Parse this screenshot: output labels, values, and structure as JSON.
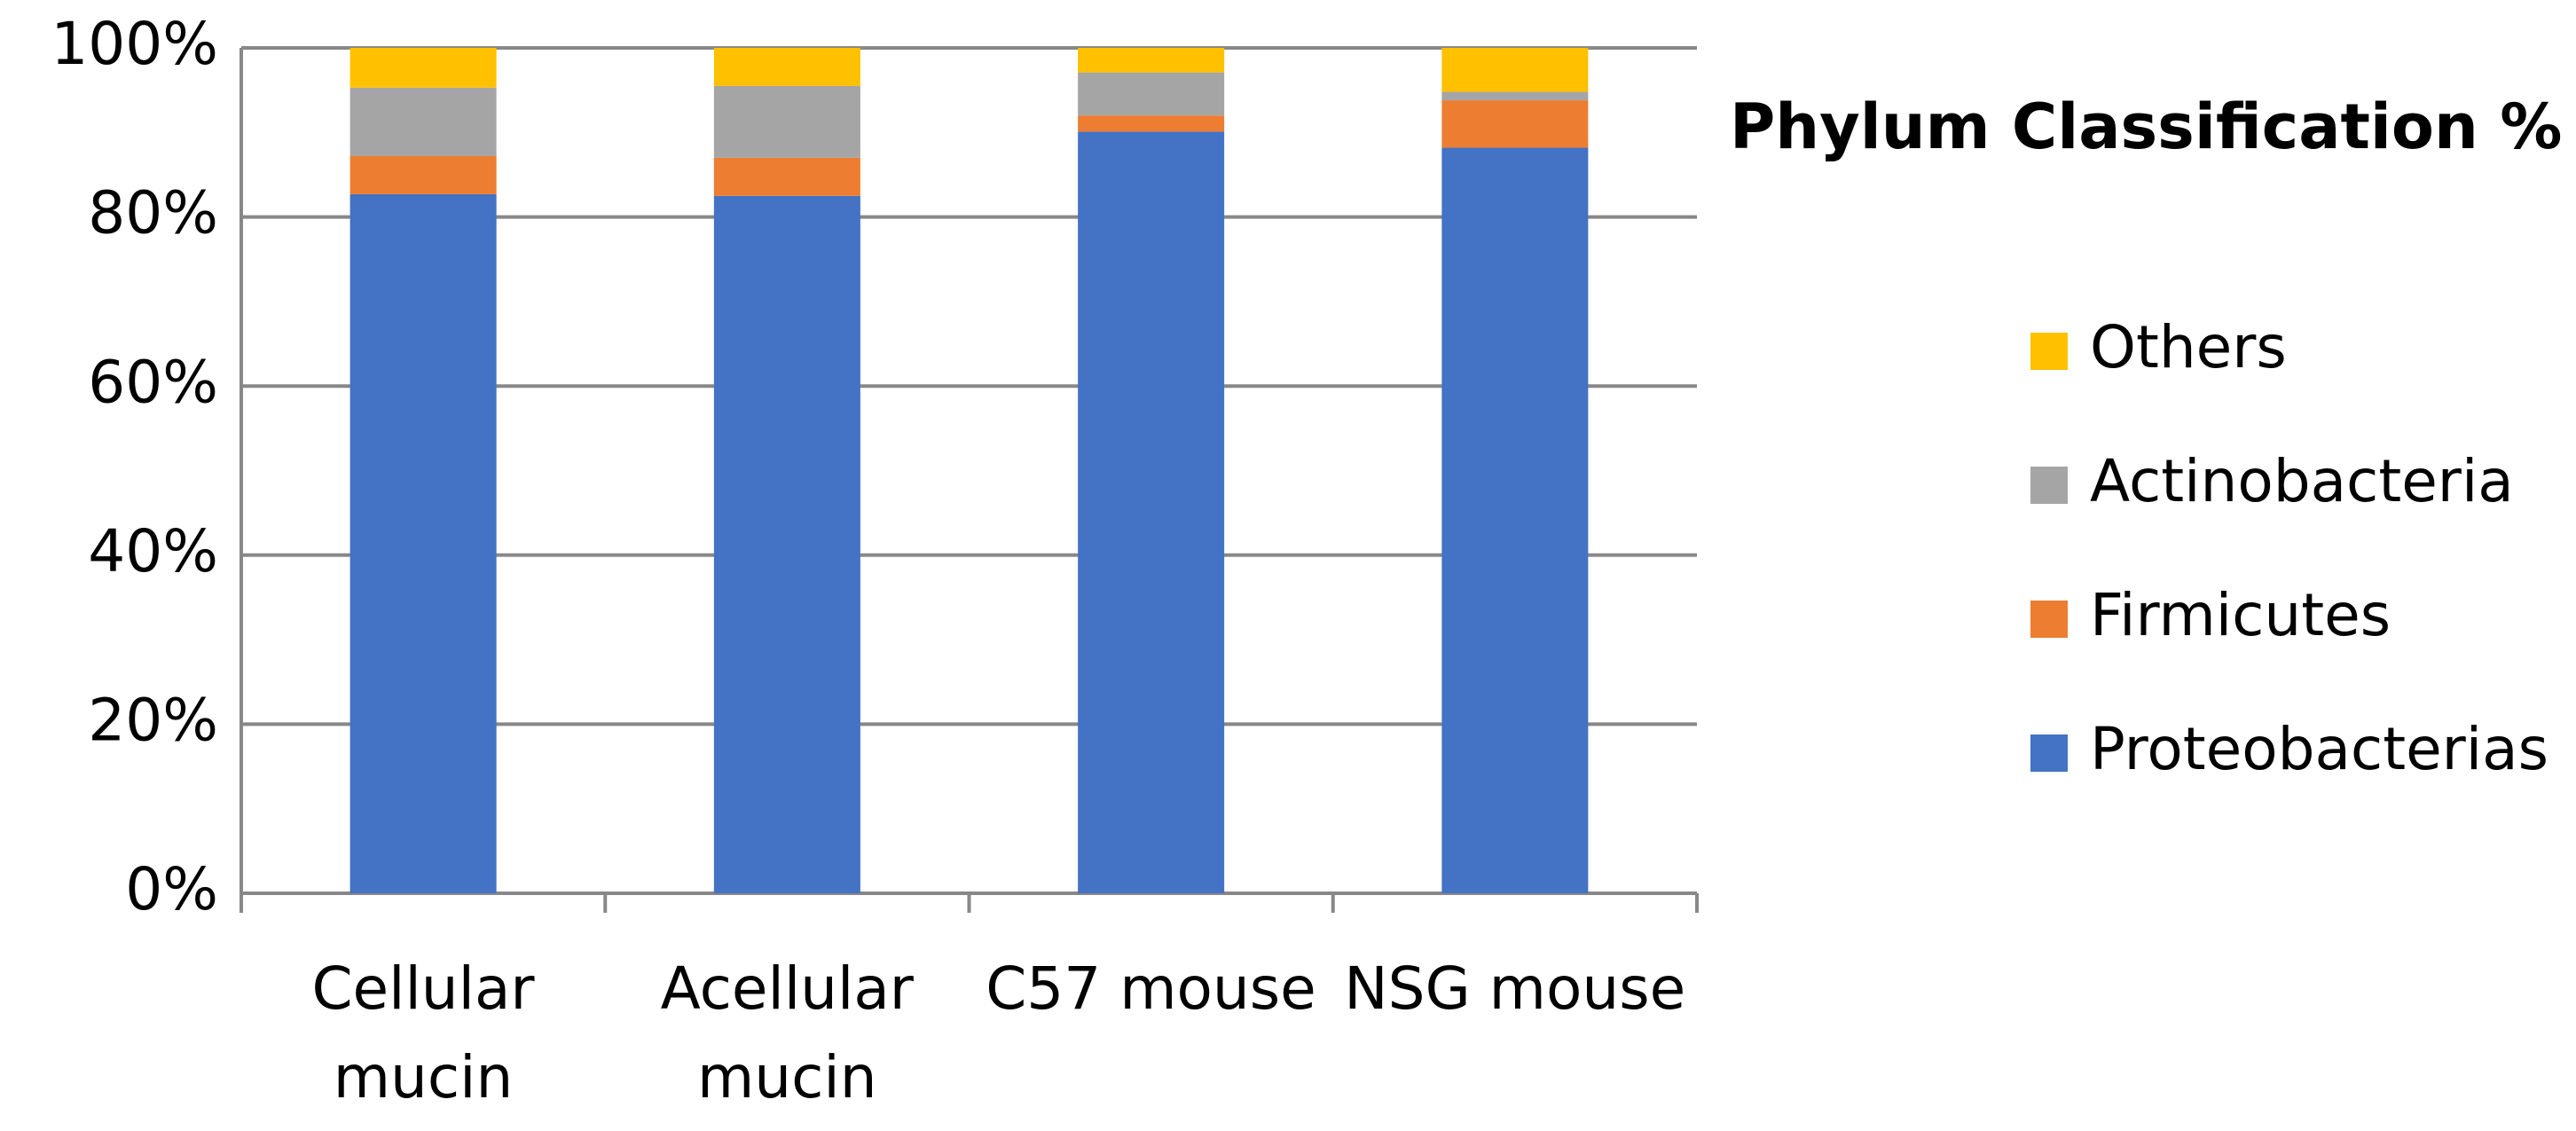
{
  "chart_data": {
    "type": "stacked-bar",
    "title": "Phylum Classification %",
    "categories": [
      "Cellular mucin",
      "Acellular mucin",
      "C57 mouse",
      "NSG mouse"
    ],
    "series": [
      {
        "name": "Proteobacterias",
        "color": "#4472c4",
        "values": [
          82.7,
          82.5,
          90.1,
          88.2
        ]
      },
      {
        "name": "Firmicutes",
        "color": "#ed7d31",
        "values": [
          4.5,
          4.5,
          1.9,
          5.6
        ]
      },
      {
        "name": "Actinobacteria",
        "color": "#a5a5a5",
        "values": [
          8.1,
          8.5,
          5.1,
          1.0
        ]
      },
      {
        "name": "Others",
        "color": "#ffc000",
        "values": [
          4.7,
          4.5,
          2.9,
          5.2
        ]
      }
    ],
    "ylim": [
      0,
      100
    ],
    "yticks": [
      {
        "value": 0,
        "label": "0%"
      },
      {
        "value": 20,
        "label": "20%"
      },
      {
        "value": 40,
        "label": "40%"
      },
      {
        "value": 60,
        "label": "60%"
      },
      {
        "value": 80,
        "label": "80%"
      },
      {
        "value": 100,
        "label": "100%"
      }
    ],
    "grid": true
  }
}
